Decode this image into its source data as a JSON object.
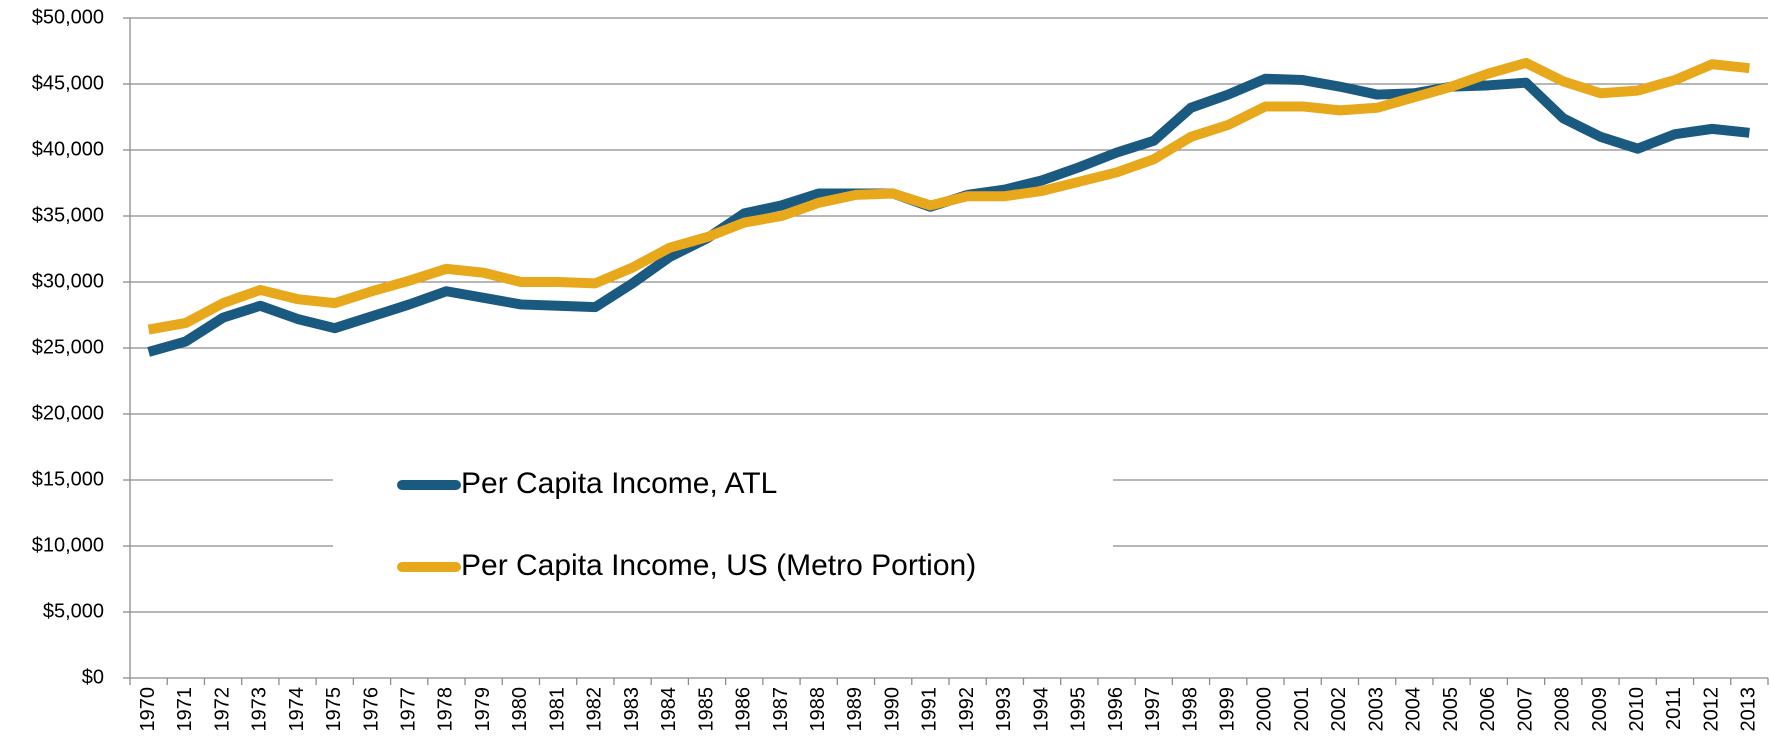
{
  "chart_data": {
    "type": "line",
    "categories": [
      "1970",
      "1971",
      "1972",
      "1973",
      "1974",
      "1975",
      "1976",
      "1977",
      "1978",
      "1979",
      "1980",
      "1981",
      "1982",
      "1983",
      "1984",
      "1985",
      "1986",
      "1987",
      "1988",
      "1989",
      "1990",
      "1991",
      "1992",
      "1993",
      "1994",
      "1995",
      "1996",
      "1997",
      "1998",
      "1999",
      "2000",
      "2001",
      "2002",
      "2003",
      "2004",
      "2005",
      "2006",
      "2007",
      "2008",
      "2009",
      "2010",
      "2011",
      "2012",
      "2013"
    ],
    "series": [
      {
        "name": "Per Capita Income, ATL",
        "color": "#1b5a80",
        "values": [
          24700,
          25500,
          27300,
          28200,
          27200,
          26500,
          27400,
          28300,
          29300,
          28800,
          28300,
          28200,
          28100,
          29900,
          31900,
          33300,
          35200,
          35800,
          36700,
          36700,
          36700,
          35700,
          36600,
          37000,
          37700,
          38700,
          39800,
          40700,
          43200,
          44200,
          45400,
          45300,
          44800,
          44200,
          44300,
          44800,
          44900,
          45100,
          42400,
          41000,
          40100,
          41200,
          41600,
          41300
        ]
      },
      {
        "name": "Per Capita Income, US (Metro Portion)",
        "color": "#e8a81c",
        "values": [
          26400,
          26900,
          28400,
          29400,
          28700,
          28400,
          29300,
          30100,
          31000,
          30700,
          30000,
          30000,
          29900,
          31100,
          32600,
          33400,
          34500,
          35000,
          36000,
          36600,
          36700,
          35800,
          36500,
          36500,
          36900,
          37600,
          38300,
          39300,
          41000,
          41900,
          43300,
          43300,
          43000,
          43200,
          44000,
          44800,
          45800,
          46600,
          45200,
          44300,
          44500,
          45300,
          46500,
          46200
        ]
      }
    ],
    "ylim": [
      0,
      50000
    ],
    "yticks": [
      {
        "value": 0,
        "label": "$0"
      },
      {
        "value": 5000,
        "label": "$5,000"
      },
      {
        "value": 10000,
        "label": "$10,000"
      },
      {
        "value": 15000,
        "label": "$15,000"
      },
      {
        "value": 20000,
        "label": "$20,000"
      },
      {
        "value": 25000,
        "label": "$25,000"
      },
      {
        "value": 30000,
        "label": "$30,000"
      },
      {
        "value": 35000,
        "label": "$35,000"
      },
      {
        "value": 40000,
        "label": "$40,000"
      },
      {
        "value": 45000,
        "label": "$45,000"
      },
      {
        "value": 50000,
        "label": "$50,000"
      }
    ],
    "grid": true
  }
}
